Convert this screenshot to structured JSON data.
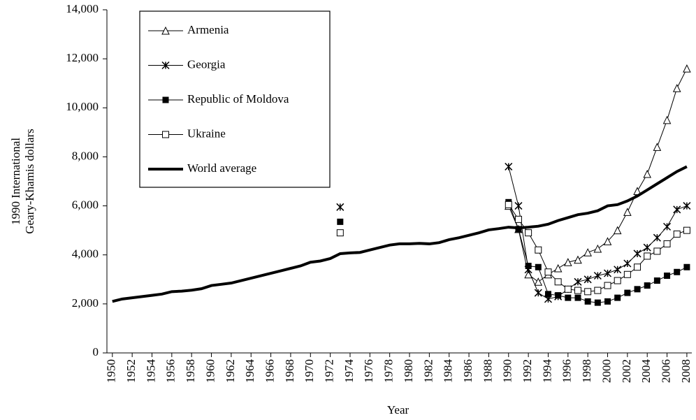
{
  "chart_data": {
    "type": "line",
    "ylabel": [
      "1990 International",
      "Geary-Khamis  dollars"
    ],
    "xlabel": "Year",
    "x": [
      1950,
      1951,
      1952,
      1953,
      1954,
      1955,
      1956,
      1957,
      1958,
      1959,
      1960,
      1961,
      1962,
      1963,
      1964,
      1965,
      1966,
      1967,
      1968,
      1969,
      1970,
      1971,
      1972,
      1973,
      1974,
      1975,
      1976,
      1977,
      1978,
      1979,
      1980,
      1981,
      1982,
      1983,
      1984,
      1985,
      1986,
      1987,
      1988,
      1989,
      1990,
      1991,
      1992,
      1993,
      1994,
      1995,
      1996,
      1997,
      1998,
      1999,
      2000,
      2001,
      2002,
      2003,
      2004,
      2005,
      2006,
      2007,
      2008
    ],
    "xlim": [
      1949.45,
      2008.5
    ],
    "xticks": [
      1950,
      1952,
      1954,
      1956,
      1958,
      1960,
      1962,
      1964,
      1966,
      1968,
      1970,
      1972,
      1974,
      1976,
      1978,
      1980,
      1982,
      1984,
      1986,
      1988,
      1990,
      1992,
      1994,
      1996,
      1998,
      2000,
      2002,
      2004,
      2006,
      2008
    ],
    "ylim": [
      0,
      14000
    ],
    "yticks": [
      0,
      {
        "value": 2000,
        "label": "2,000"
      },
      {
        "value": 4000,
        "label": "4,000"
      },
      {
        "value": 6000,
        "label": "6,000"
      },
      {
        "value": 8000,
        "label": "8,000"
      },
      {
        "value": 10000,
        "label": "10,000"
      },
      {
        "value": 12000,
        "label": "12,000"
      },
      {
        "value": 14000,
        "label": "14,000"
      }
    ],
    "grid": false,
    "legend": "top-left",
    "series": [
      {
        "name": "Armenia",
        "color": "#000000",
        "marker": "triangle-open",
        "line_width": 1,
        "values": [
          null,
          null,
          null,
          null,
          null,
          null,
          null,
          null,
          null,
          null,
          null,
          null,
          null,
          null,
          null,
          null,
          null,
          null,
          null,
          null,
          null,
          null,
          null,
          null,
          null,
          null,
          null,
          null,
          null,
          null,
          null,
          null,
          null,
          null,
          null,
          null,
          null,
          null,
          null,
          null,
          6000,
          5050,
          3200,
          2900,
          3200,
          3450,
          3700,
          3800,
          4100,
          4250,
          4550,
          5000,
          5750,
          6600,
          7300,
          8400,
          9500,
          10800,
          11600
        ]
      },
      {
        "name": "Georgia",
        "color": "#000000",
        "marker": "x",
        "line_width": 1,
        "values": [
          null,
          null,
          null,
          null,
          null,
          null,
          null,
          null,
          null,
          null,
          null,
          null,
          null,
          null,
          null,
          null,
          null,
          null,
          null,
          null,
          null,
          null,
          null,
          5950,
          null,
          null,
          null,
          null,
          null,
          null,
          null,
          null,
          null,
          null,
          null,
          null,
          null,
          null,
          null,
          null,
          7600,
          6000,
          3400,
          2450,
          2200,
          2300,
          2600,
          2900,
          3000,
          3150,
          3250,
          3400,
          3650,
          4050,
          4300,
          4700,
          5150,
          5850,
          6000
        ]
      },
      {
        "name": "Republic of Moldova",
        "color": "#000000",
        "marker": "square-filled",
        "line_width": 1,
        "values": [
          null,
          null,
          null,
          null,
          null,
          null,
          null,
          null,
          null,
          null,
          null,
          null,
          null,
          null,
          null,
          null,
          null,
          null,
          null,
          null,
          null,
          null,
          null,
          5350,
          null,
          null,
          null,
          null,
          null,
          null,
          null,
          null,
          null,
          null,
          null,
          null,
          null,
          null,
          null,
          null,
          6150,
          5050,
          3550,
          3500,
          2400,
          2350,
          2250,
          2250,
          2100,
          2050,
          2100,
          2250,
          2450,
          2600,
          2750,
          2950,
          3150,
          3300,
          3500
        ]
      },
      {
        "name": "Ukraine",
        "color": "#000000",
        "marker": "square-open",
        "line_width": 1,
        "values": [
          null,
          null,
          null,
          null,
          null,
          null,
          null,
          null,
          null,
          null,
          null,
          null,
          null,
          null,
          null,
          null,
          null,
          null,
          null,
          null,
          null,
          null,
          null,
          4900,
          null,
          null,
          null,
          null,
          null,
          null,
          null,
          null,
          null,
          null,
          null,
          null,
          null,
          null,
          null,
          null,
          6050,
          5450,
          4900,
          4200,
          3300,
          2900,
          2600,
          2550,
          2500,
          2550,
          2750,
          2950,
          3200,
          3500,
          3950,
          4150,
          4450,
          4850,
          5000
        ]
      },
      {
        "name": "World average",
        "color": "#000000",
        "marker": "none",
        "line_width": 4,
        "values": [
          2100,
          2200,
          2250,
          2300,
          2350,
          2400,
          2500,
          2520,
          2560,
          2620,
          2750,
          2800,
          2850,
          2950,
          3050,
          3150,
          3250,
          3350,
          3450,
          3550,
          3700,
          3750,
          3850,
          4050,
          4080,
          4100,
          4200,
          4300,
          4400,
          4450,
          4450,
          4470,
          4450,
          4500,
          4620,
          4700,
          4800,
          4900,
          5020,
          5070,
          5130,
          5100,
          5130,
          5170,
          5250,
          5400,
          5520,
          5640,
          5700,
          5800,
          6000,
          6050,
          6200,
          6400,
          6650,
          6900,
          7150,
          7400,
          7600
        ]
      }
    ]
  }
}
